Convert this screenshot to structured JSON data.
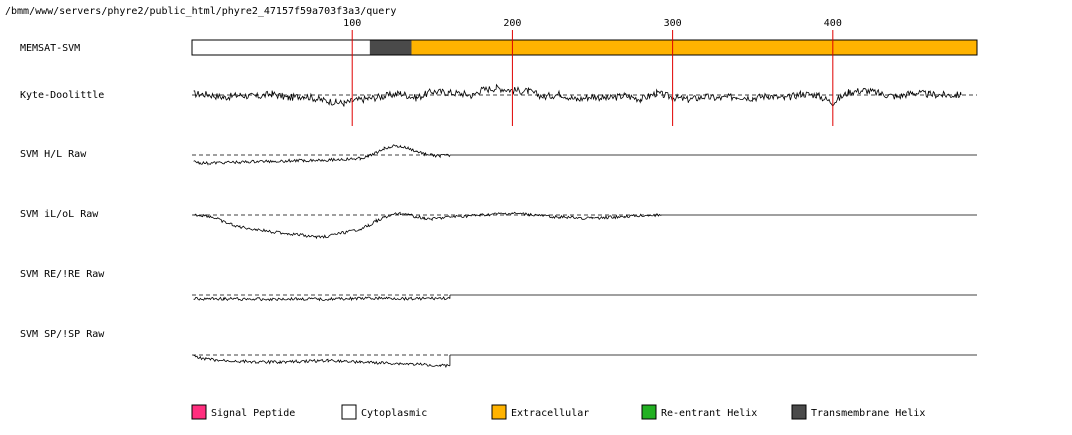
{
  "header": {
    "path": "/bmm/www/servers/phyre2/public_html/phyre2_47157f59a703f3a3/query"
  },
  "chart_data": {
    "type": "line",
    "sequence_length": 490,
    "x_ticks": [
      {
        "value": 100,
        "label": "100"
      },
      {
        "value": 200,
        "label": "200"
      },
      {
        "value": 300,
        "label": "300"
      },
      {
        "value": 400,
        "label": "400"
      }
    ],
    "memsat": {
      "label": "MEMSAT-SVM",
      "segments": [
        {
          "start": 1,
          "end": 112,
          "type": "Cytoplasmic"
        },
        {
          "start": 112,
          "end": 138,
          "type": "Transmembrane Helix"
        },
        {
          "start": 138,
          "end": 490,
          "type": "Extracellular"
        }
      ]
    },
    "tracks": [
      {
        "label": "SVM H/L Raw",
        "data_end": 161,
        "points": [
          [
            1,
            1.1
          ],
          [
            5,
            1.3
          ],
          [
            10,
            1.4
          ],
          [
            20,
            1.25
          ],
          [
            30,
            1.2
          ],
          [
            40,
            1.1
          ],
          [
            55,
            1.0
          ],
          [
            70,
            0.9
          ],
          [
            85,
            0.8
          ],
          [
            100,
            0.7
          ],
          [
            105,
            0.55
          ],
          [
            110,
            0.3
          ],
          [
            115,
            -0.4
          ],
          [
            120,
            -1.1
          ],
          [
            125,
            -1.5
          ],
          [
            130,
            -1.4
          ],
          [
            135,
            -1.1
          ],
          [
            140,
            -0.6
          ],
          [
            145,
            -0.2
          ],
          [
            150,
            0.05
          ],
          [
            155,
            0.15
          ],
          [
            161,
            0.1
          ]
        ]
      },
      {
        "label": "SVM iL/oL Raw",
        "data_end": 293,
        "points": [
          [
            1,
            0.0
          ],
          [
            8,
            0.1
          ],
          [
            12,
            0.3
          ],
          [
            16,
            0.7
          ],
          [
            20,
            1.2
          ],
          [
            25,
            1.6
          ],
          [
            30,
            2.0
          ],
          [
            40,
            2.4
          ],
          [
            50,
            2.8
          ],
          [
            60,
            3.1
          ],
          [
            70,
            3.4
          ],
          [
            78,
            3.7
          ],
          [
            85,
            3.5
          ],
          [
            90,
            3.2
          ],
          [
            100,
            2.7
          ],
          [
            105,
            2.3
          ],
          [
            110,
            1.8
          ],
          [
            115,
            1.0
          ],
          [
            120,
            0.4
          ],
          [
            125,
            0.0
          ],
          [
            130,
            -0.3
          ],
          [
            135,
            -0.1
          ],
          [
            140,
            0.3
          ],
          [
            145,
            0.5
          ],
          [
            150,
            0.7
          ],
          [
            160,
            0.35
          ],
          [
            170,
            0.2
          ],
          [
            180,
            0.05
          ],
          [
            190,
            -0.15
          ],
          [
            200,
            -0.25
          ],
          [
            210,
            -0.1
          ],
          [
            220,
            0.2
          ],
          [
            230,
            0.35
          ],
          [
            240,
            0.45
          ],
          [
            250,
            0.55
          ],
          [
            260,
            0.4
          ],
          [
            270,
            0.25
          ],
          [
            280,
            0.1
          ],
          [
            293,
            0.0
          ]
        ]
      },
      {
        "label": "SVM RE/!RE Raw",
        "data_end": 161,
        "points": [
          [
            1,
            0.6
          ],
          [
            20,
            0.65
          ],
          [
            40,
            0.7
          ],
          [
            60,
            0.65
          ],
          [
            80,
            0.7
          ],
          [
            100,
            0.6
          ],
          [
            120,
            0.55
          ],
          [
            140,
            0.6
          ],
          [
            155,
            0.55
          ],
          [
            161,
            0.6
          ]
        ]
      },
      {
        "label": "SVM SP/!SP Raw",
        "data_end": 161,
        "points": [
          [
            1,
            0.3
          ],
          [
            8,
            0.6
          ],
          [
            15,
            0.9
          ],
          [
            25,
            1.0
          ],
          [
            35,
            1.1
          ],
          [
            45,
            1.2
          ],
          [
            55,
            1.15
          ],
          [
            65,
            1.1
          ],
          [
            75,
            1.0
          ],
          [
            85,
            0.9
          ],
          [
            95,
            1.0
          ],
          [
            105,
            1.2
          ],
          [
            115,
            1.3
          ],
          [
            125,
            1.4
          ],
          [
            135,
            1.5
          ],
          [
            145,
            1.6
          ],
          [
            155,
            1.7
          ],
          [
            161,
            1.8
          ]
        ]
      }
    ],
    "kyte_doolittle": {
      "label": "Kyte-Doolittle",
      "points": [
        [
          1,
          0.2
        ],
        [
          10,
          0.1
        ],
        [
          20,
          -0.4
        ],
        [
          30,
          0.0
        ],
        [
          40,
          -0.3
        ],
        [
          50,
          0.2
        ],
        [
          60,
          -0.5
        ],
        [
          70,
          -0.1
        ],
        [
          80,
          -0.8
        ],
        [
          90,
          -1.2
        ],
        [
          95,
          -1.4
        ],
        [
          100,
          -1.0
        ],
        [
          110,
          -0.6
        ],
        [
          120,
          -0.2
        ],
        [
          130,
          0.3
        ],
        [
          140,
          -0.5
        ],
        [
          150,
          0.6
        ],
        [
          160,
          0.4
        ],
        [
          170,
          0.2
        ],
        [
          175,
          -0.1
        ],
        [
          180,
          0.8
        ],
        [
          190,
          1.2
        ],
        [
          200,
          0.8
        ],
        [
          210,
          0.6
        ],
        [
          220,
          -0.3
        ],
        [
          230,
          0.2
        ],
        [
          240,
          -0.8
        ],
        [
          250,
          -0.2
        ],
        [
          260,
          -0.6
        ],
        [
          270,
          -0.1
        ],
        [
          280,
          -0.7
        ],
        [
          290,
          0.3
        ],
        [
          300,
          -0.4
        ],
        [
          310,
          -0.8
        ],
        [
          320,
          -0.3
        ],
        [
          330,
          -0.6
        ],
        [
          340,
          -0.2
        ],
        [
          350,
          -0.5
        ],
        [
          360,
          -0.1
        ],
        [
          370,
          -0.6
        ],
        [
          380,
          0.2
        ],
        [
          390,
          0.0
        ],
        [
          400,
          -1.3
        ],
        [
          410,
          0.5
        ],
        [
          420,
          0.8
        ],
        [
          430,
          0.2
        ],
        [
          440,
          -0.3
        ],
        [
          450,
          0.4
        ],
        [
          460,
          0.1
        ],
        [
          470,
          0.0
        ],
        [
          480,
          0.0
        ]
      ]
    }
  },
  "legend": [
    {
      "label": "Signal Peptide",
      "color": "#ff2e7e"
    },
    {
      "label": "Cytoplasmic",
      "color": "#ffffff"
    },
    {
      "label": "Extracellular",
      "color": "#ffb300"
    },
    {
      "label": "Re-entrant Helix",
      "color": "#22b022"
    },
    {
      "label": "Transmembrane Helix",
      "color": "#4a4a4a"
    }
  ]
}
